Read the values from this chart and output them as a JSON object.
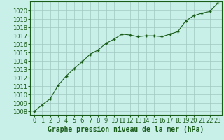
{
  "x": [
    0,
    1,
    2,
    3,
    4,
    5,
    6,
    7,
    8,
    9,
    10,
    11,
    12,
    13,
    14,
    15,
    16,
    17,
    18,
    19,
    20,
    21,
    22,
    23
  ],
  "y": [
    1008.0,
    1008.8,
    1009.5,
    1011.1,
    1012.2,
    1013.1,
    1013.9,
    1014.8,
    1015.3,
    1016.1,
    1016.6,
    1017.2,
    1017.1,
    1016.9,
    1017.0,
    1017.0,
    1016.9,
    1017.2,
    1017.5,
    1018.8,
    1019.4,
    1019.7,
    1019.9,
    1020.9
  ],
  "line_color": "#1a5c1a",
  "marker": "+",
  "marker_size": 3,
  "marker_linewidth": 1.0,
  "bg_color": "#c8f0e8",
  "grid_color": "#a0c8c0",
  "ylabel_ticks": [
    1008,
    1009,
    1010,
    1011,
    1012,
    1013,
    1014,
    1015,
    1016,
    1017,
    1018,
    1019,
    1020
  ],
  "xlabel": "Graphe pression niveau de la mer (hPa)",
  "xlabel_fontsize": 7,
  "tick_fontsize": 6,
  "ylim": [
    1007.6,
    1021.1
  ],
  "xlim": [
    -0.5,
    23.5
  ],
  "axis_color": "#1a5c1a"
}
